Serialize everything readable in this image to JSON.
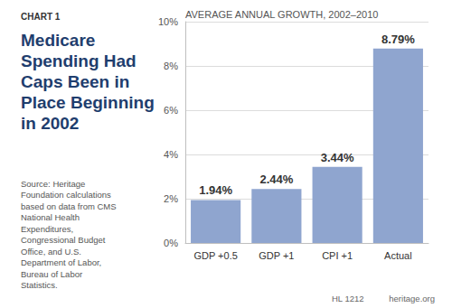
{
  "chart_data": {
    "type": "bar",
    "title": "Medicare Spending Had Caps Been in Place Beginning in 2002",
    "subtitle": "AVERAGE ANNUAL GROWTH, 2002–2010",
    "categories": [
      "GDP +0.5",
      "GDP +1",
      "CPI +1",
      "Actual"
    ],
    "values": [
      1.94,
      2.44,
      3.44,
      8.79
    ],
    "value_labels": [
      "1.94%",
      "2.44%",
      "3.44%",
      "8.79%"
    ],
    "color": "#8fa5cf",
    "ylim": [
      0,
      10
    ],
    "yticks": [
      {
        "value": 0,
        "label": "0%"
      },
      {
        "value": 2,
        "label": "2%"
      },
      {
        "value": 4,
        "label": "4%"
      },
      {
        "value": 6,
        "label": "6%"
      },
      {
        "value": 8,
        "label": "8%"
      },
      {
        "value": 10,
        "label": "10%"
      }
    ],
    "grid": true,
    "data_labels": true,
    "annotations": [
      "CHART 1",
      "Source: Heritage Foundation calculations based on data from CMS National Health Expenditures, Congressional Budget Office, and U.S. Department of Labor, Bureau of Labor Statistics.",
      "HL 1212",
      "heritage.org"
    ]
  }
}
